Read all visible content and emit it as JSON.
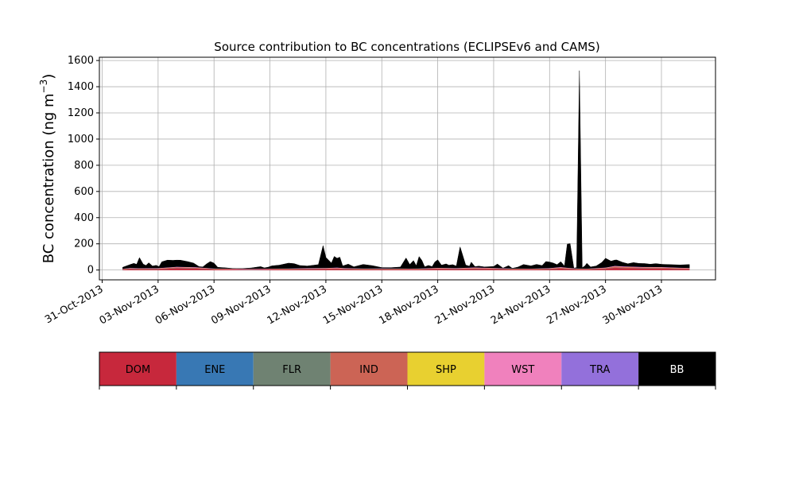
{
  "chart_data": {
    "type": "area",
    "stacked": true,
    "title": "Source contribution to BC concentrations (ECLIPSEv6 and CAMS)",
    "xlabel": "",
    "ylabel": "BC concentration (ng m",
    "ylabel_sup": "−3",
    "ylabel_close": ")",
    "xlim": [
      -0.15,
      32.9
    ],
    "ylim": [
      -75,
      1625
    ],
    "yticks": [
      0,
      200,
      400,
      600,
      800,
      1000,
      1200,
      1400,
      1600
    ],
    "xtick_labels": [
      "31-Oct-2013",
      "03-Nov-2013",
      "06-Nov-2013",
      "09-Nov-2013",
      "12-Nov-2013",
      "15-Nov-2013",
      "18-Nov-2013",
      "21-Nov-2013",
      "24-Nov-2013",
      "27-Nov-2013",
      "30-Nov-2013"
    ],
    "xtick_positions": [
      0,
      3,
      6,
      9,
      12,
      15,
      18,
      21,
      24,
      27,
      30
    ],
    "grid": true,
    "series": [
      {
        "name": "DOM",
        "color": "#c7283c",
        "x": [
          1.1,
          1.5,
          2.0,
          3.0,
          4.0,
          5.0,
          6.0,
          7.0,
          8.0,
          9.0,
          10.0,
          11.0,
          12.0,
          12.6,
          13.0,
          14.0,
          15.0,
          16.0,
          16.5,
          17.0,
          18.0,
          19.0,
          20.0,
          21.0,
          22.0,
          23.0,
          24.0,
          24.6,
          25.0,
          25.5,
          26.0,
          27.0,
          27.5,
          28.0,
          29.0,
          30.0,
          31.0,
          31.5
        ],
        "values": [
          4,
          8,
          6,
          7,
          14,
          12,
          6,
          5,
          4,
          5,
          6,
          7,
          8,
          9,
          7,
          6,
          7,
          6,
          5,
          6,
          9,
          7,
          10,
          8,
          6,
          5,
          7,
          12,
          8,
          6,
          5,
          10,
          18,
          15,
          13,
          12,
          9,
          8
        ]
      },
      {
        "name": "ENE",
        "color": "#3878b4",
        "x": [
          1.1,
          31.5
        ],
        "values": [
          0.5,
          0.5
        ]
      },
      {
        "name": "FLR",
        "color": "#6f8272",
        "x": [
          1.1,
          31.5
        ],
        "values": [
          0.5,
          0.5
        ]
      },
      {
        "name": "IND",
        "color": "#cc6455",
        "x": [
          1.1,
          1.5,
          2.0,
          3.0,
          4.0,
          5.0,
          6.0,
          7.0,
          8.0,
          9.0,
          10.0,
          11.0,
          12.0,
          12.6,
          13.0,
          14.0,
          15.0,
          16.0,
          16.5,
          17.0,
          18.0,
          19.0,
          20.0,
          21.0,
          22.0,
          23.0,
          24.0,
          24.6,
          25.0,
          25.5,
          26.0,
          27.0,
          27.5,
          28.0,
          29.0,
          30.0,
          31.0,
          31.5
        ],
        "values": [
          3,
          4,
          4,
          4,
          6,
          5,
          3,
          3,
          3,
          3,
          3,
          4,
          4,
          5,
          4,
          3,
          3,
          3,
          3,
          3,
          4,
          4,
          5,
          4,
          3,
          3,
          4,
          6,
          5,
          3,
          3,
          5,
          8,
          7,
          6,
          6,
          5,
          4
        ]
      },
      {
        "name": "SHP",
        "color": "#e8d030",
        "x": [
          1.1,
          31.5
        ],
        "values": [
          0.2,
          0.2
        ]
      },
      {
        "name": "WST",
        "color": "#f081bd",
        "x": [
          1.1,
          1.5,
          2.0,
          3.0,
          4.0,
          5.0,
          6.0,
          7.0,
          8.0,
          9.0,
          10.0,
          11.0,
          12.0,
          12.6,
          13.0,
          14.0,
          15.0,
          16.0,
          16.5,
          17.0,
          18.0,
          19.0,
          20.0,
          21.0,
          22.0,
          23.0,
          24.0,
          24.6,
          25.0,
          25.5,
          26.0,
          27.0,
          27.5,
          28.0,
          29.0,
          30.0,
          31.0,
          31.5
        ],
        "values": [
          2,
          3,
          3,
          3,
          4,
          4,
          2,
          2,
          2,
          2,
          2,
          3,
          3,
          4,
          3,
          2,
          2,
          2,
          2,
          2,
          3,
          3,
          4,
          3,
          2,
          2,
          3,
          4,
          3,
          2,
          2,
          3,
          5,
          5,
          4,
          4,
          3,
          3
        ]
      },
      {
        "name": "TRA",
        "color": "#9370db",
        "x": [
          1.1,
          31.5
        ],
        "values": [
          0.5,
          0.5
        ]
      },
      {
        "name": "BB",
        "color": "#000000",
        "x": [
          1.1,
          1.5,
          1.7,
          1.85,
          2.0,
          2.2,
          2.35,
          2.5,
          2.7,
          2.9,
          3.05,
          3.2,
          3.5,
          3.8,
          4.2,
          4.6,
          4.9,
          5.2,
          5.4,
          5.6,
          5.8,
          6.0,
          6.2,
          6.6,
          7.0,
          7.5,
          8.0,
          8.5,
          8.7,
          8.9,
          9.1,
          9.5,
          10.0,
          10.3,
          10.6,
          11.0,
          11.3,
          11.6,
          11.85,
          12.0,
          12.3,
          12.45,
          12.6,
          12.75,
          12.9,
          13.2,
          13.5,
          14.0,
          14.5,
          15.0,
          15.5,
          16.0,
          16.3,
          16.5,
          16.7,
          16.85,
          17.0,
          17.15,
          17.3,
          17.5,
          17.7,
          17.85,
          18.0,
          18.2,
          18.45,
          18.6,
          18.8,
          19.0,
          19.2,
          19.5,
          19.7,
          19.8,
          20.0,
          20.2,
          20.5,
          21.0,
          21.2,
          21.5,
          21.8,
          22.0,
          22.3,
          22.6,
          23.0,
          23.3,
          23.6,
          23.8,
          24.0,
          24.2,
          24.4,
          24.6,
          24.8,
          24.95,
          25.1,
          25.3,
          25.45,
          25.6,
          25.75,
          25.9,
          26.0,
          26.2,
          26.5,
          26.8,
          27.0,
          27.3,
          27.6,
          27.9,
          28.2,
          28.5,
          28.8,
          29.1,
          29.4,
          29.7,
          30.0,
          30.3,
          30.6,
          31.0,
          31.5
        ],
        "values": [
          10,
          25,
          35,
          28,
          80,
          30,
          20,
          40,
          15,
          20,
          10,
          45,
          55,
          50,
          50,
          40,
          30,
          5,
          5,
          30,
          50,
          40,
          8,
          5,
          0,
          0,
          5,
          15,
          5,
          10,
          20,
          25,
          40,
          35,
          20,
          15,
          20,
          25,
          170,
          80,
          35,
          85,
          70,
          80,
          15,
          30,
          10,
          30,
          20,
          5,
          5,
          10,
          80,
          30,
          60,
          20,
          90,
          60,
          10,
          20,
          10,
          45,
          60,
          20,
          30,
          20,
          25,
          15,
          160,
          20,
          10,
          40,
          5,
          10,
          5,
          10,
          30,
          0,
          20,
          0,
          10,
          30,
          20,
          30,
          20,
          50,
          45,
          35,
          20,
          40,
          10,
          180,
          185,
          0,
          5,
          1510,
          5,
          20,
          40,
          10,
          15,
          40,
          70,
          40,
          45,
          30,
          20,
          30,
          25,
          25,
          20,
          25,
          20,
          20,
          20,
          20,
          25
        ]
      }
    ]
  },
  "legend": {
    "items": [
      {
        "label": "DOM",
        "color": "#c7283c",
        "text_color": "#000000"
      },
      {
        "label": "ENE",
        "color": "#3878b4",
        "text_color": "#000000"
      },
      {
        "label": "FLR",
        "color": "#6f8272",
        "text_color": "#000000"
      },
      {
        "label": "IND",
        "color": "#cc6455",
        "text_color": "#000000"
      },
      {
        "label": "SHP",
        "color": "#e8d030",
        "text_color": "#000000"
      },
      {
        "label": "WST",
        "color": "#f081bd",
        "text_color": "#000000"
      },
      {
        "label": "TRA",
        "color": "#9370db",
        "text_color": "#000000"
      },
      {
        "label": "BB",
        "color": "#000000",
        "text_color": "#ffffff"
      }
    ]
  }
}
